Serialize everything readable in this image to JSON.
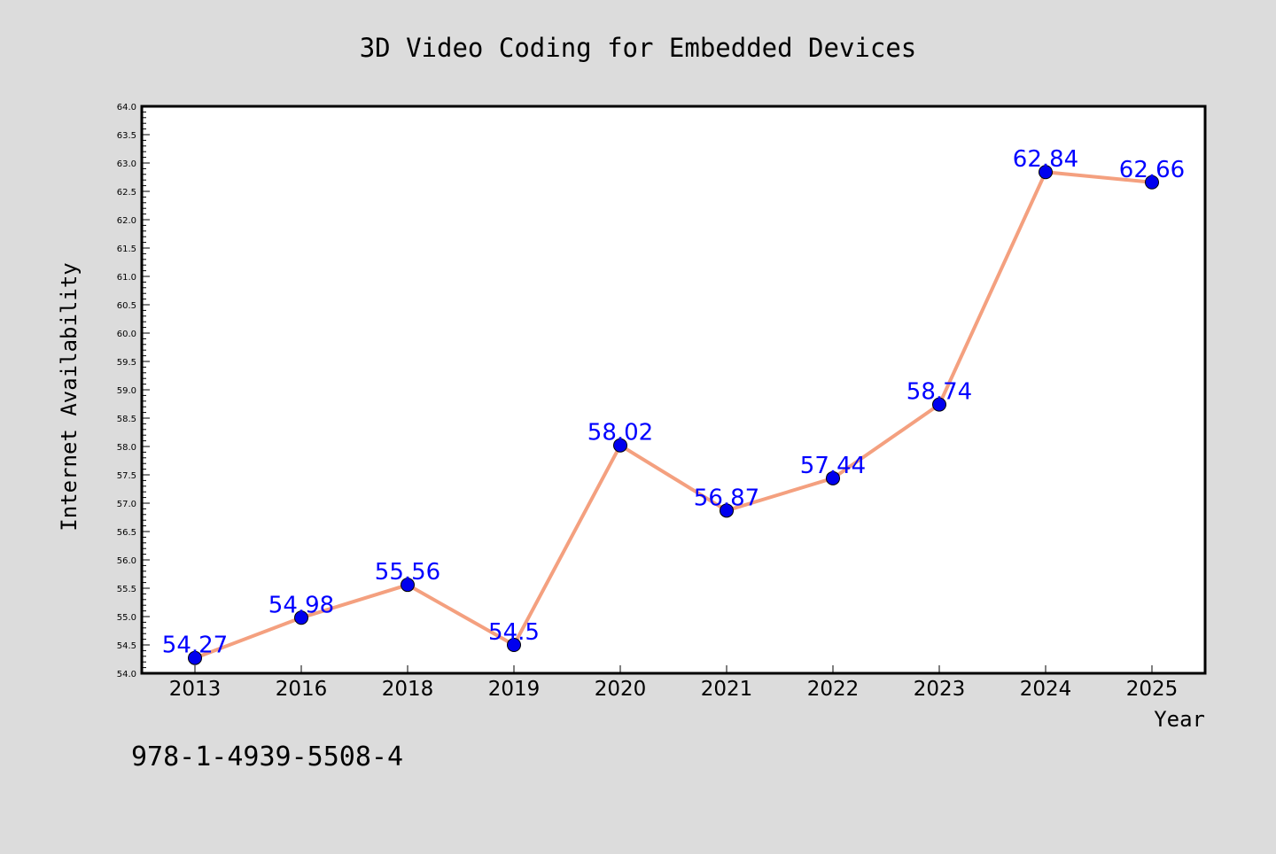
{
  "colors": {
    "background": "#dcdcdc",
    "plot_background": "#ffffff",
    "line": "#f4a07f",
    "marker": "#0000ee",
    "data_label": "#0000ff",
    "text": "#000000"
  },
  "chart_data": {
    "type": "line",
    "title": "3D Video Coding for Embedded Devices",
    "xlabel": "Year",
    "ylabel": "Internet Availability",
    "categories": [
      "2013",
      "2016",
      "2018",
      "2019",
      "2020",
      "2021",
      "2022",
      "2023",
      "2024",
      "2025"
    ],
    "series": [
      {
        "values": [
          54.27,
          54.98,
          55.56,
          54.5,
          58.02,
          56.87,
          57.44,
          58.74,
          62.84,
          62.66
        ],
        "data_labels": [
          "54.27",
          "54.98",
          "55.56",
          "54.5",
          "58.02",
          "56.87",
          "57.44",
          "58.74",
          "62.84",
          "62.66"
        ]
      }
    ],
    "ylim": [
      54.0,
      64.0
    ],
    "y_ticks": [
      "54.0",
      "54.5",
      "55.0",
      "55.5",
      "56.0",
      "56.5",
      "57.0",
      "57.5",
      "58.0",
      "58.5",
      "59.0",
      "59.5",
      "60.0",
      "60.5",
      "61.0",
      "61.5",
      "62.0",
      "62.5",
      "63.0",
      "63.5",
      "64.0"
    ],
    "grid": false,
    "legend": "none"
  },
  "footer": {
    "isbn": "978-1-4939-5508-4"
  }
}
